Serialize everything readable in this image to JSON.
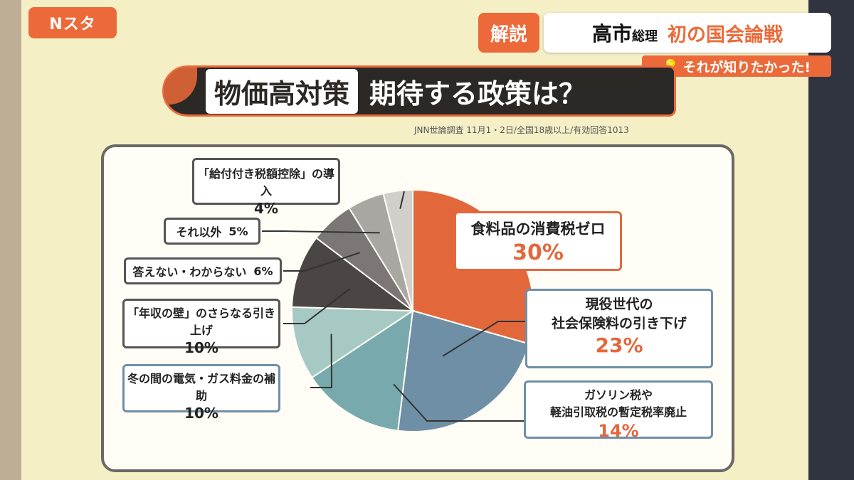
{
  "program": {
    "logo": "Nスタ"
  },
  "header": {
    "badge": "解説",
    "name": "高市",
    "name_title": "総理",
    "topic": "初の国会論戦",
    "tagline": "それが知りたかった!"
  },
  "title": {
    "highlight": "物価高対策",
    "rest": "期待する政策は？"
  },
  "source": "JNN世論調査 11月1・2日/全国18歳以上/有効回答1013",
  "chart_data": {
    "type": "pie",
    "title": "物価高対策 期待する政策は？",
    "unit": "%",
    "start_angle": "12 o'clock",
    "direction": "clockwise",
    "slices": [
      {
        "label": "食料品の消費税ゼロ",
        "value": 30,
        "pct_text": "30%",
        "color": "#e2683c"
      },
      {
        "label": "現役世代の社会保険料の引き下げ",
        "value": 23,
        "pct_text": "23%",
        "color": "#6f8fa6"
      },
      {
        "label": "ガソリン税や軽油引取税の暫定税率廃止",
        "value": 14,
        "pct_text": "14%",
        "color": "#78a9ad"
      },
      {
        "label": "冬の間の電気・ガス料金の補助",
        "value": 10,
        "pct_text": "10%",
        "color": "#a7c9c4"
      },
      {
        "label": "「年収の壁」のさらなる引き上げ",
        "value": 10,
        "pct_text": "10%",
        "color": "#4b4543"
      },
      {
        "label": "答えない・わからない",
        "value": 6,
        "pct_text": "6%",
        "color": "#7c7774"
      },
      {
        "label": "それ以外",
        "value": 5,
        "pct_text": "5%",
        "color": "#aaa6a2"
      },
      {
        "label": "「給付付き税額控除」の導入",
        "value": 4,
        "pct_text": "4%",
        "color": "#d2cfcb"
      }
    ],
    "labels": [
      {
        "name_lines": [
          "食料品の消費税ゼロ"
        ],
        "pct": "30%"
      },
      {
        "name_lines": [
          "現役世代の",
          "社会保険料の引き下げ"
        ],
        "pct": "23%"
      },
      {
        "name_lines": [
          "ガソリン税や",
          "軽油引取税の暫定税率廃止"
        ],
        "pct": "14%"
      },
      {
        "name_lines": [
          "冬の間の電気・ガス料金の補助"
        ],
        "pct": "10%"
      },
      {
        "name_lines": [
          "「年収の壁」のさらなる引き上げ"
        ],
        "pct": "10%"
      },
      {
        "name_lines": [
          "答えない・わからない"
        ],
        "pct": "6%"
      },
      {
        "name_lines": [
          "それ以外"
        ],
        "pct": "5%"
      },
      {
        "name_lines": [
          "「給付付き税額控除」の導入"
        ],
        "pct": "4%"
      }
    ]
  }
}
